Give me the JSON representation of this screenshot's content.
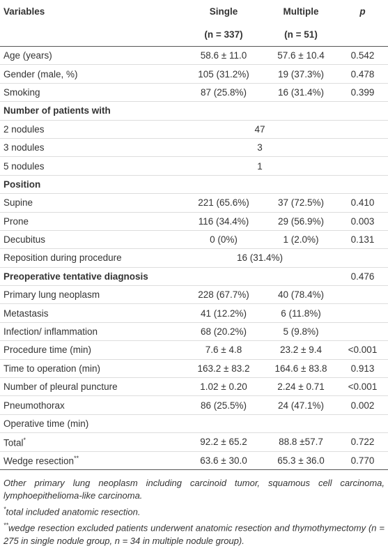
{
  "columns": {
    "label": "Variables",
    "single": {
      "name": "Single",
      "n": "(n = 337)"
    },
    "multiple": {
      "name": "Multiple",
      "n": "(n = 51)"
    },
    "p": "p"
  },
  "rows": [
    {
      "label": "Age (years)",
      "single": "58.6 ± 11.0",
      "multiple": "57.6 ± 10.4",
      "p": "0.542"
    },
    {
      "label": "Gender (male, %)",
      "single": "105 (31.2%)",
      "multiple": "19 (37.3%)",
      "p": "0.478"
    },
    {
      "label": "Smoking",
      "single": "87 (25.8%)",
      "multiple": "16 (31.4%)",
      "p": "0.399"
    },
    {
      "heading": "Number of patients with"
    },
    {
      "label": "2 nodules",
      "both": "47"
    },
    {
      "label": "3 nodules",
      "both": "3"
    },
    {
      "label": "5 nodules",
      "both": "1"
    },
    {
      "heading": "Position"
    },
    {
      "label": "Supine",
      "single": "221 (65.6%)",
      "multiple": "37 (72.5%)",
      "p": "0.410"
    },
    {
      "label": "Prone",
      "single": "116 (34.4%)",
      "multiple": "29 (56.9%)",
      "p": "0.003"
    },
    {
      "label": "Decubitus",
      "single": "0 (0%)",
      "multiple": "1 (2.0%)",
      "p": "0.131"
    },
    {
      "label": "Reposition during procedure",
      "both": "16 (31.4%)"
    },
    {
      "heading": "Preoperative tentative diagnosis",
      "p": "0.476"
    },
    {
      "label": "Primary lung neoplasm",
      "single": "228 (67.7%)",
      "multiple": "40 (78.4%)"
    },
    {
      "label": "Metastasis",
      "single": "41 (12.2%)",
      "multiple": "6 (11.8%)"
    },
    {
      "label": "Infection/ inflammation",
      "single": "68 (20.2%)",
      "multiple": "5 (9.8%)"
    },
    {
      "label": "Procedure time (min)",
      "single": "7.6 ± 4.8",
      "multiple": "23.2 ± 9.4",
      "p": "<0.001"
    },
    {
      "label": "Time to operation (min)",
      "single": "163.2 ± 83.2",
      "multiple": "164.6 ± 83.8",
      "p": "0.913"
    },
    {
      "label": "Number of pleural puncture",
      "single": "1.02 ± 0.20",
      "multiple": "2.24 ± 0.71",
      "p": "<0.001"
    },
    {
      "label": "Pneumothorax",
      "single": "86 (25.5%)",
      "multiple": "24 (47.1%)",
      "p": "0.002"
    },
    {
      "label": "Operative time (min)"
    },
    {
      "label": "Total",
      "mark": "*",
      "single": "92.2 ± 65.2",
      "multiple": "88.8 ±57.7",
      "p": "0.722"
    },
    {
      "label": "Wedge resection",
      "mark": "**",
      "single": "63.6 ± 30.0",
      "multiple": "65.3 ± 36.0",
      "p": "0.770"
    }
  ],
  "footnotes": [
    {
      "text": "Other primary lung neoplasm including carcinoid tumor, squamous cell carcinoma, lymphoepithelioma-like carcinoma."
    },
    {
      "marker": "*",
      "text": "total included anatomic resection."
    },
    {
      "marker": "**",
      "text": "wedge resection excluded patients underwent anatomic resection and thymothymectomy (n = 275 in single nodule group, n = 34 in multiple nodule group)."
    }
  ]
}
